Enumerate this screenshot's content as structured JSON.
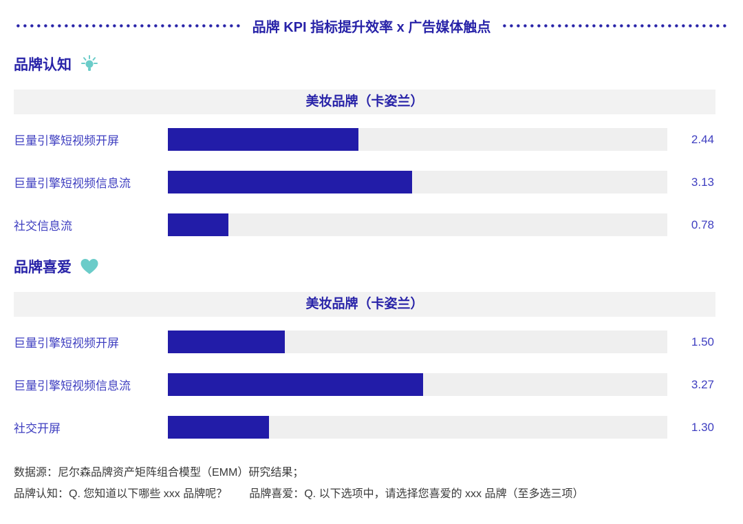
{
  "title": "品牌 KPI 指标提升效率 x 广告媒体触点",
  "chart_scale_max": 6.4,
  "colors": {
    "title_blue": "#2823A8",
    "bar_blue": "#221CA8",
    "label_blue": "#3E3EC0",
    "icon_teal": "#6BCCC9",
    "track_gray": "#EFEFEF",
    "band_gray": "#F2F2F2"
  },
  "sections": [
    {
      "heading": "品牌认知",
      "icon": "lightbulb-icon",
      "table_header": "美妆品牌（卡姿兰）",
      "rows": [
        {
          "label": "巨量引擎短视频开屏",
          "value": 2.44,
          "value_label": "2.44"
        },
        {
          "label": "巨量引擎短视频信息流",
          "value": 3.13,
          "value_label": "3.13"
        },
        {
          "label": "社交信息流",
          "value": 0.78,
          "value_label": "0.78"
        }
      ]
    },
    {
      "heading": "品牌喜爱",
      "icon": "heart-icon",
      "table_header": "美妆品牌（卡姿兰）",
      "rows": [
        {
          "label": "巨量引擎短视频开屏",
          "value": 1.5,
          "value_label": "1.50"
        },
        {
          "label": "巨量引擎短视频信息流",
          "value": 3.27,
          "value_label": "3.27"
        },
        {
          "label": "社交开屏",
          "value": 1.3,
          "value_label": "1.30"
        }
      ]
    }
  ],
  "chart_data": [
    {
      "type": "bar",
      "orientation": "horizontal",
      "title": "品牌认知 — 美妆品牌（卡姿兰）",
      "categories": [
        "巨量引擎短视频开屏",
        "巨量引擎短视频信息流",
        "社交信息流"
      ],
      "values": [
        2.44,
        3.13,
        0.78
      ],
      "xlim": [
        0,
        6.4
      ],
      "grid": false,
      "legend": false,
      "data_labels": true
    },
    {
      "type": "bar",
      "orientation": "horizontal",
      "title": "品牌喜爱 — 美妆品牌（卡姿兰）",
      "categories": [
        "巨量引擎短视频开屏",
        "巨量引擎短视频信息流",
        "社交开屏"
      ],
      "values": [
        1.5,
        3.27,
        1.3
      ],
      "xlim": [
        0,
        6.4
      ],
      "grid": false,
      "legend": false,
      "data_labels": true
    }
  ],
  "footnotes": [
    "数据源：尼尔森品牌资产矩阵组合模型（EMM）研究结果；",
    "品牌认知：Q. 您知道以下哪些 xxx 品牌呢？　　品牌喜爱：Q. 以下选项中，请选择您喜爱的 xxx 品牌（至多选三项）"
  ]
}
